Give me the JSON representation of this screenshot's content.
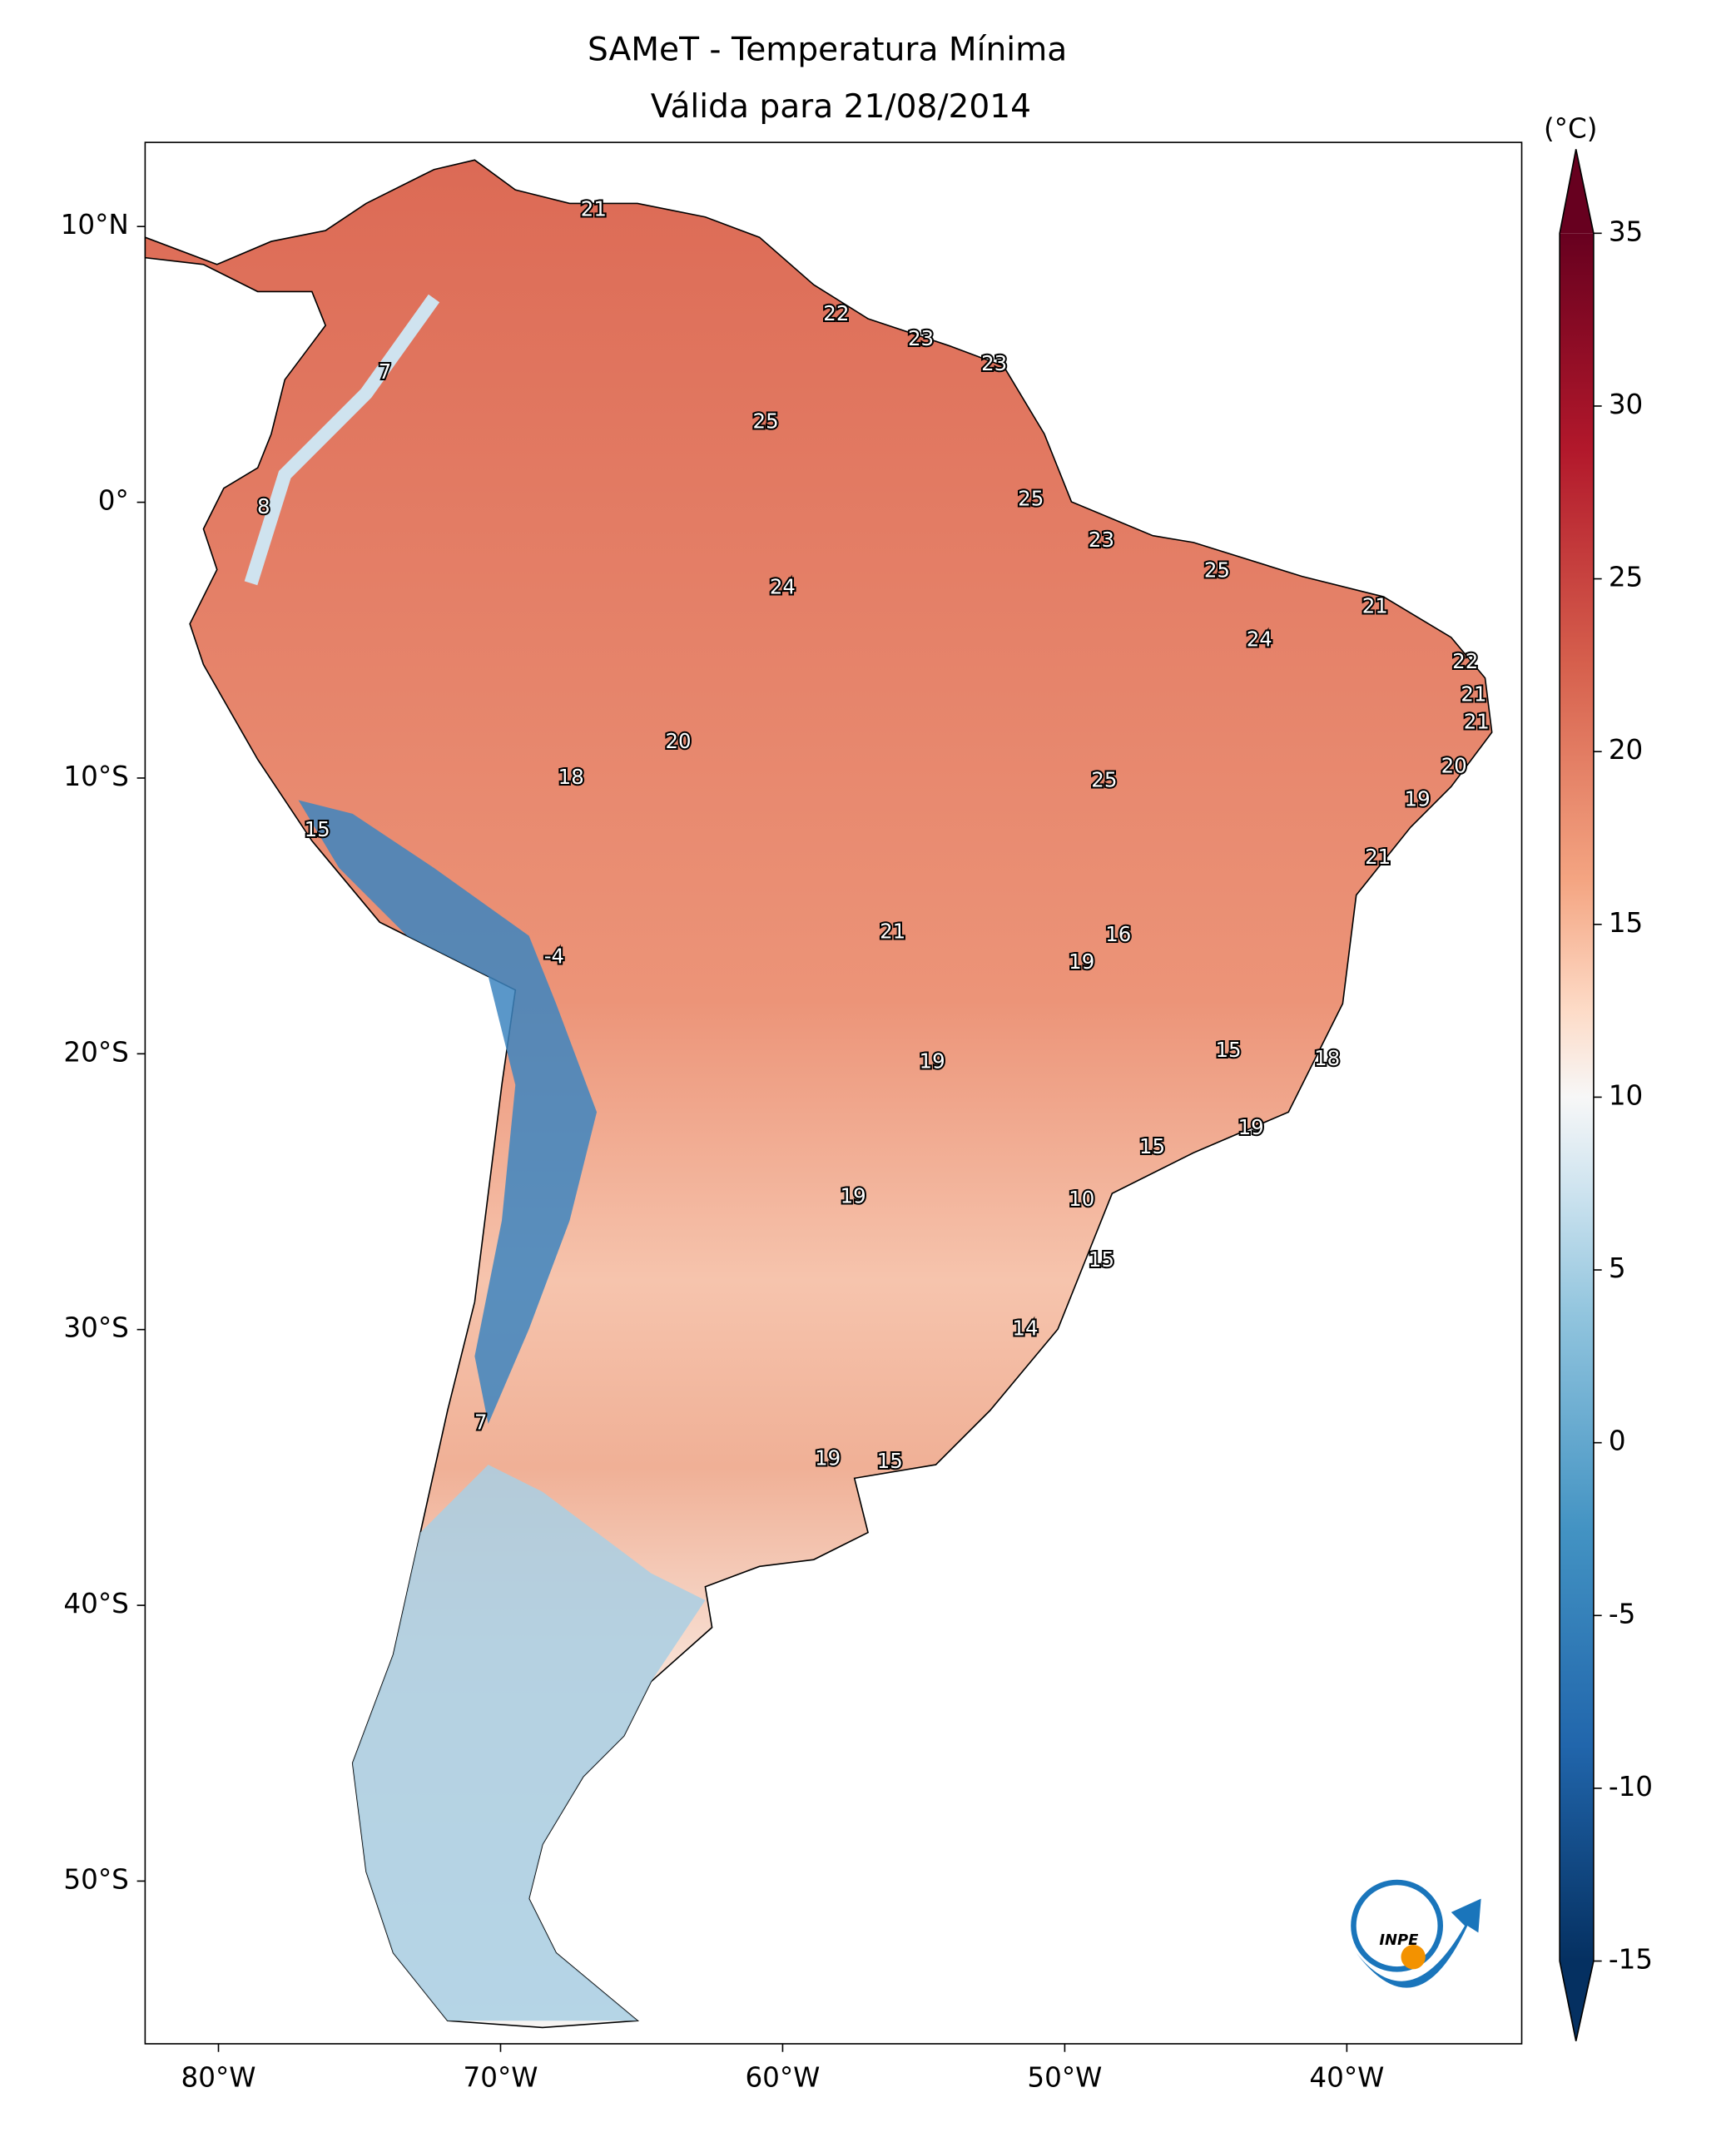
{
  "chart_data": {
    "type": "map",
    "title": "SAMeT - Temperatura Mínima",
    "subtitle": "Válida para 21/08/2014",
    "xlim": [
      -82.6,
      -33.8
    ],
    "ylim": [
      -55.9,
      13.05
    ],
    "xticks": [
      {
        "value": -80,
        "label": "80°W"
      },
      {
        "value": -70,
        "label": "70°W"
      },
      {
        "value": -60,
        "label": "60°W"
      },
      {
        "value": -50,
        "label": "50°W"
      },
      {
        "value": -40,
        "label": "40°W"
      }
    ],
    "yticks": [
      {
        "value": 10,
        "label": "10°N"
      },
      {
        "value": 0,
        "label": "0°"
      },
      {
        "value": -10,
        "label": "10°S"
      },
      {
        "value": -20,
        "label": "20°S"
      },
      {
        "value": -30,
        "label": "30°S"
      },
      {
        "value": -40,
        "label": "40°S"
      },
      {
        "value": -50,
        "label": "50°S"
      }
    ],
    "colorbar": {
      "label": "(°C)",
      "clim": [
        -15,
        35
      ],
      "ticks": [
        35,
        30,
        25,
        20,
        15,
        10,
        5,
        0,
        -5,
        -10,
        -15
      ]
    },
    "logo_text": "INPE",
    "points": {
      "lon": [
        -66.7,
        -74.1,
        -58.1,
        -55.1,
        -52.5,
        -60.6,
        -78.4,
        -51.2,
        -48.7,
        -44.6,
        -60.0,
        -39.0,
        -43.1,
        -35.8,
        -35.5,
        -35.4,
        -63.7,
        -36.2,
        -67.5,
        -48.6,
        -37.5,
        -76.5,
        -38.9,
        -56.1,
        -48.1,
        -49.4,
        -68.1,
        -44.2,
        -40.7,
        -54.7,
        -43.4,
        -46.9,
        -57.5,
        -49.4,
        -48.7,
        -51.4,
        -70.7,
        -58.4,
        -56.2
      ],
      "lat": [
        10.6,
        4.7,
        6.8,
        5.9,
        5.0,
        2.9,
        -0.2,
        0.1,
        -1.4,
        -2.5,
        -3.1,
        -3.8,
        -5.0,
        -5.8,
        -7.0,
        -8.0,
        -8.7,
        -9.6,
        -10.0,
        -10.1,
        -10.8,
        -11.9,
        -12.9,
        -15.6,
        -15.7,
        -16.7,
        -16.5,
        -19.9,
        -20.2,
        -20.3,
        -22.7,
        -23.4,
        -25.2,
        -25.3,
        -27.5,
        -30.0,
        -33.4,
        -34.7,
        -34.8
      ],
      "values": [
        21,
        7,
        22,
        23,
        23,
        25,
        8,
        25,
        23,
        25,
        24,
        21,
        24,
        22,
        21,
        21,
        20,
        20,
        18,
        25,
        19,
        15,
        21,
        21,
        16,
        19,
        -4,
        15,
        18,
        19,
        19,
        15,
        19,
        10,
        15,
        14,
        7,
        19,
        15
      ]
    }
  }
}
